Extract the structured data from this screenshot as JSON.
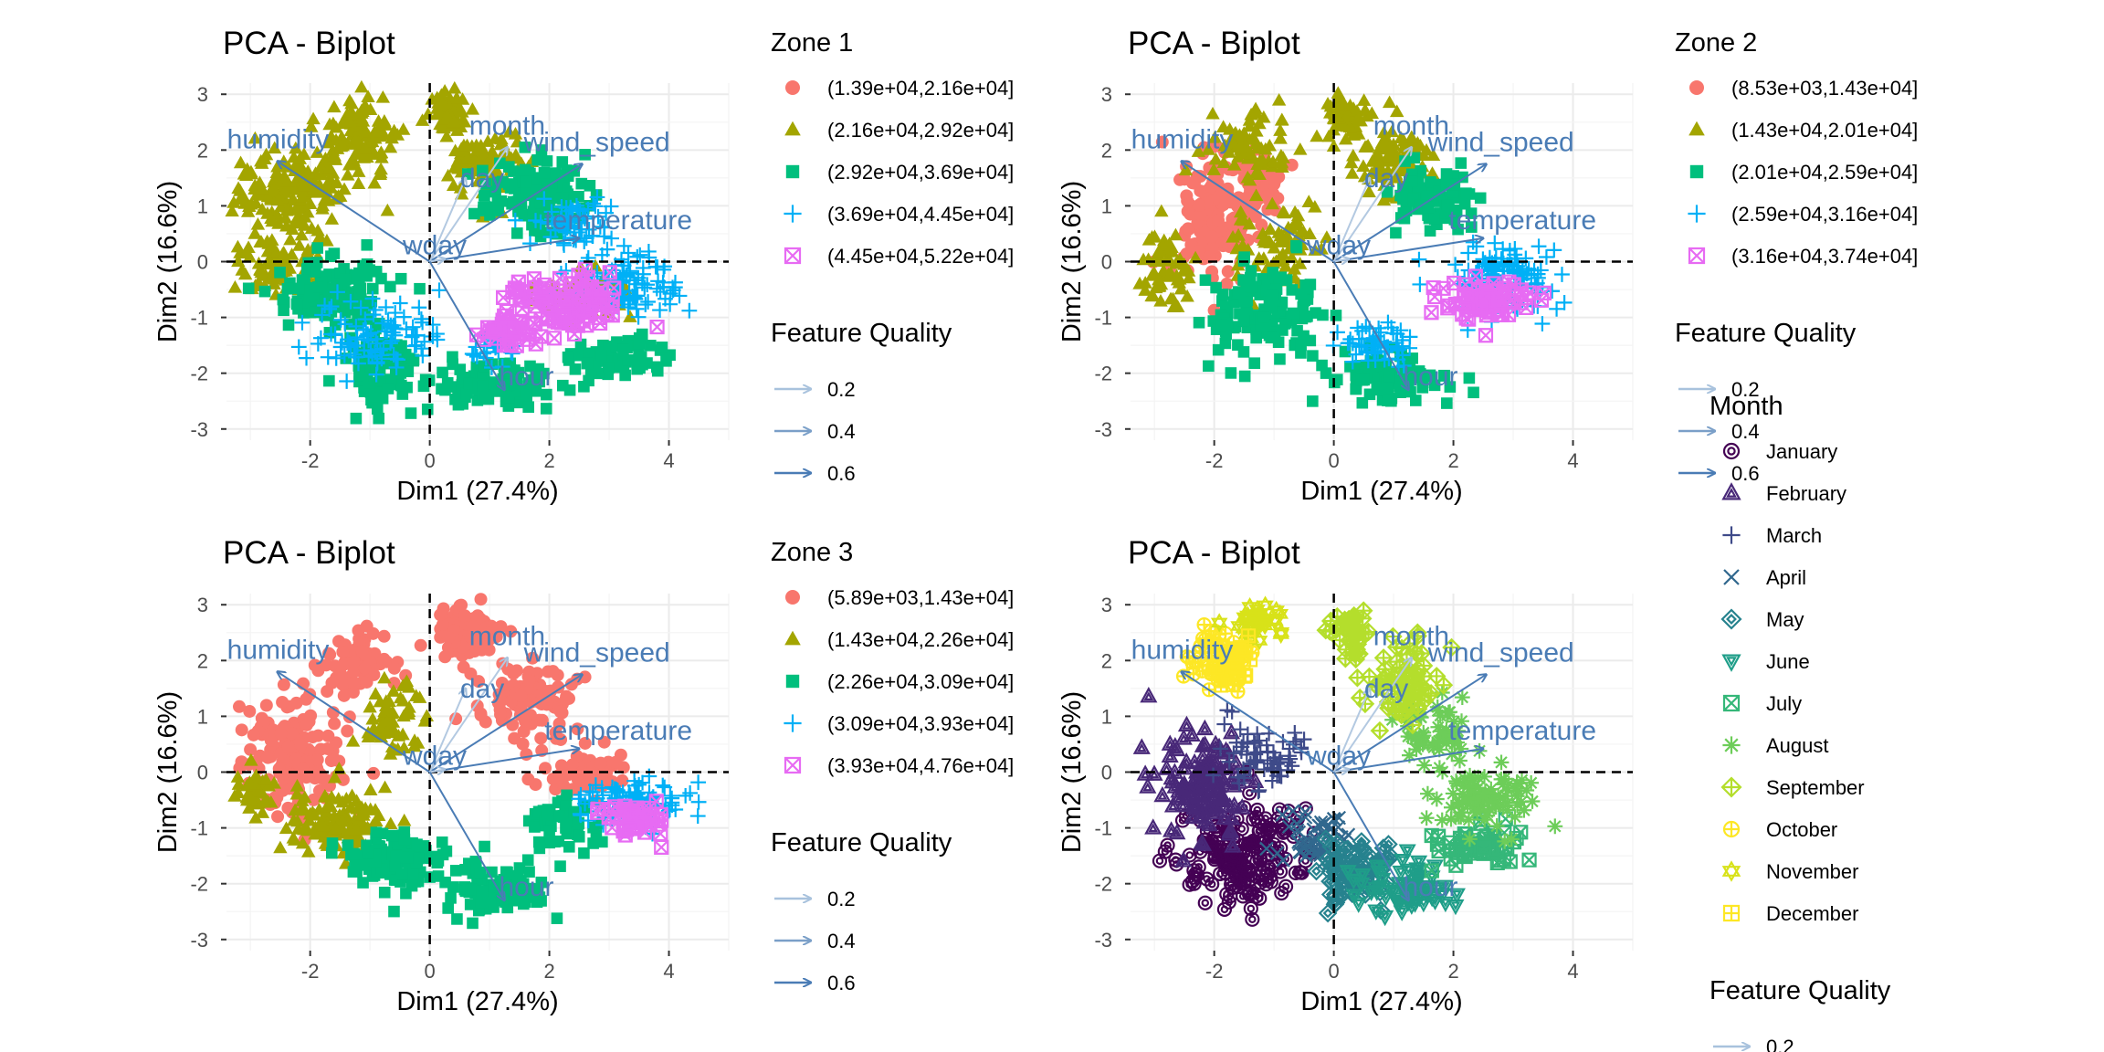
{
  "chart_data": [
    {
      "type": "scatter",
      "title": "PCA - Biplot",
      "xlabel": "Dim1 (27.4%)",
      "ylabel": "Dim2 (16.6%)",
      "xlim": [
        -3.4,
        5.0
      ],
      "ylim": [
        -3.2,
        3.2
      ],
      "x_ticks": [
        "-2",
        "0",
        "2",
        "4"
      ],
      "y_ticks": [
        "3",
        "2",
        "1",
        "0",
        "-1",
        "-2",
        "-3"
      ],
      "grid": true,
      "legend_title": "Zone 1",
      "legend": [
        {
          "label": "(1.39e+04,2.16e+04]",
          "color": "#F8766D",
          "shape": "circle"
        },
        {
          "label": "(2.16e+04,2.92e+04]",
          "color": "#A3A500",
          "shape": "triangle"
        },
        {
          "label": "(2.92e+04,3.69e+04]",
          "color": "#00BF7D",
          "shape": "square"
        },
        {
          "label": "(3.69e+04,4.45e+04]",
          "color": "#00B0F6",
          "shape": "plus"
        },
        {
          "label": "(4.45e+04,5.22e+04]",
          "color": "#E76BF3",
          "shape": "boxx"
        }
      ],
      "quality_title": "Feature Quality",
      "quality": [
        "0.2",
        "0.4",
        "0.6"
      ],
      "variables": [
        {
          "name": "humidity",
          "x": -2.55,
          "y": 1.8
        },
        {
          "name": "month",
          "x": 1.3,
          "y": 2.05
        },
        {
          "name": "wind_speed",
          "x": 2.55,
          "y": 1.75
        },
        {
          "name": "day",
          "x": 0.6,
          "y": 1.5
        },
        {
          "name": "temperature",
          "x": 2.5,
          "y": 0.42
        },
        {
          "name": "wday",
          "x": 0.25,
          "y": 0.05
        },
        {
          "name": "hour",
          "x": 1.25,
          "y": -2.3
        }
      ],
      "clusters": [
        {
          "series": 1,
          "cx": -2.3,
          "cy": 1.3,
          "rx": 0.9,
          "ry": 0.7,
          "n": 170
        },
        {
          "series": 1,
          "cx": -1.2,
          "cy": 2.2,
          "rx": 0.6,
          "ry": 0.6,
          "n": 100
        },
        {
          "series": 1,
          "cx": 0.3,
          "cy": 2.6,
          "rx": 0.3,
          "ry": 0.4,
          "n": 70
        },
        {
          "series": 1,
          "cx": 1.0,
          "cy": 1.7,
          "rx": 0.6,
          "ry": 0.6,
          "n": 90
        },
        {
          "series": 1,
          "cx": -2.5,
          "cy": 0.0,
          "rx": 0.6,
          "ry": 0.6,
          "n": 90
        },
        {
          "series": 1,
          "cx": 2.6,
          "cy": -0.6,
          "rx": 0.7,
          "ry": 0.4,
          "n": 60
        },
        {
          "series": 2,
          "cx": -1.7,
          "cy": -0.6,
          "rx": 0.8,
          "ry": 0.6,
          "n": 130
        },
        {
          "series": 2,
          "cx": -0.8,
          "cy": -1.9,
          "rx": 0.6,
          "ry": 0.6,
          "n": 90
        },
        {
          "series": 2,
          "cx": 1.0,
          "cy": -2.2,
          "rx": 1.1,
          "ry": 0.35,
          "n": 110
        },
        {
          "series": 2,
          "cx": 1.7,
          "cy": 1.2,
          "rx": 0.8,
          "ry": 0.6,
          "n": 110
        },
        {
          "series": 2,
          "cx": 3.2,
          "cy": -1.7,
          "rx": 0.7,
          "ry": 0.35,
          "n": 60
        },
        {
          "series": 3,
          "cx": -0.9,
          "cy": -1.3,
          "rx": 1.0,
          "ry": 0.6,
          "n": 100
        },
        {
          "series": 3,
          "cx": 3.3,
          "cy": -0.4,
          "rx": 0.8,
          "ry": 0.5,
          "n": 110
        },
        {
          "series": 3,
          "cx": 2.4,
          "cy": 0.7,
          "rx": 0.6,
          "ry": 0.4,
          "n": 70
        },
        {
          "series": 3,
          "cx": 1.1,
          "cy": -1.5,
          "rx": 0.4,
          "ry": 0.3,
          "n": 30
        },
        {
          "series": 4,
          "cx": 2.3,
          "cy": -0.8,
          "rx": 0.9,
          "ry": 0.5,
          "n": 110
        },
        {
          "series": 4,
          "cx": 1.3,
          "cy": -1.3,
          "rx": 0.4,
          "ry": 0.3,
          "n": 35
        }
      ]
    },
    {
      "type": "scatter",
      "title": "PCA - Biplot",
      "xlabel": "Dim1 (27.4%)",
      "ylabel": "Dim2 (16.6%)",
      "xlim": [
        -3.4,
        5.0
      ],
      "ylim": [
        -3.2,
        3.2
      ],
      "x_ticks": [
        "-2",
        "0",
        "2",
        "4"
      ],
      "y_ticks": [
        "3",
        "2",
        "1",
        "0",
        "-1",
        "-2",
        "-3"
      ],
      "grid": true,
      "legend_title": "Zone 2",
      "legend": [
        {
          "label": "(8.53e+03,1.43e+04]",
          "color": "#F8766D",
          "shape": "circle"
        },
        {
          "label": "(1.43e+04,2.01e+04]",
          "color": "#A3A500",
          "shape": "triangle"
        },
        {
          "label": "(2.01e+04,2.59e+04]",
          "color": "#00BF7D",
          "shape": "square"
        },
        {
          "label": "(2.59e+04,3.16e+04]",
          "color": "#00B0F6",
          "shape": "plus"
        },
        {
          "label": "(3.16e+04,3.74e+04]",
          "color": "#E76BF3",
          "shape": "boxx"
        }
      ],
      "quality_title": "Feature Quality",
      "quality": [
        "0.2",
        "0.4",
        "0.6"
      ],
      "variables": [
        {
          "name": "humidity",
          "x": -2.55,
          "y": 1.8
        },
        {
          "name": "month",
          "x": 1.3,
          "y": 2.05
        },
        {
          "name": "wind_speed",
          "x": 2.55,
          "y": 1.75
        },
        {
          "name": "day",
          "x": 0.6,
          "y": 1.5
        },
        {
          "name": "temperature",
          "x": 2.5,
          "y": 0.42
        },
        {
          "name": "wday",
          "x": 0.25,
          "y": 0.05
        },
        {
          "name": "hour",
          "x": 1.25,
          "y": -2.3
        }
      ],
      "clusters": [
        {
          "series": 0,
          "cx": -2.0,
          "cy": 0.8,
          "rx": 0.6,
          "ry": 1.0,
          "n": 150
        },
        {
          "series": 0,
          "cx": -1.3,
          "cy": 1.4,
          "rx": 0.4,
          "ry": 0.5,
          "n": 50
        },
        {
          "series": 1,
          "cx": -1.4,
          "cy": 2.1,
          "rx": 0.6,
          "ry": 0.6,
          "n": 80
        },
        {
          "series": 1,
          "cx": -2.8,
          "cy": -0.1,
          "rx": 0.4,
          "ry": 0.6,
          "n": 60
        },
        {
          "series": 1,
          "cx": 0.2,
          "cy": 2.6,
          "rx": 0.3,
          "ry": 0.4,
          "n": 60
        },
        {
          "series": 1,
          "cx": 1.0,
          "cy": 1.8,
          "rx": 0.6,
          "ry": 0.5,
          "n": 90
        },
        {
          "series": 1,
          "cx": -1.0,
          "cy": 0.3,
          "rx": 0.6,
          "ry": 0.6,
          "n": 70
        },
        {
          "series": 2,
          "cx": -1.2,
          "cy": -0.9,
          "rx": 0.9,
          "ry": 0.7,
          "n": 140
        },
        {
          "series": 2,
          "cx": 0.8,
          "cy": -2.1,
          "rx": 1.0,
          "ry": 0.4,
          "n": 100
        },
        {
          "series": 2,
          "cx": 1.7,
          "cy": 1.1,
          "rx": 0.7,
          "ry": 0.5,
          "n": 90
        },
        {
          "series": 3,
          "cx": 2.8,
          "cy": -0.3,
          "rx": 0.9,
          "ry": 0.5,
          "n": 130
        },
        {
          "series": 3,
          "cx": 0.8,
          "cy": -1.5,
          "rx": 0.6,
          "ry": 0.35,
          "n": 60
        },
        {
          "series": 4,
          "cx": 2.6,
          "cy": -0.7,
          "rx": 0.7,
          "ry": 0.35,
          "n": 70
        }
      ]
    },
    {
      "type": "scatter",
      "title": "PCA - Biplot",
      "xlabel": "Dim1 (27.4%)",
      "ylabel": "Dim2 (16.6%)",
      "xlim": [
        -3.4,
        5.0
      ],
      "ylim": [
        -3.2,
        3.2
      ],
      "x_ticks": [
        "-2",
        "0",
        "2",
        "4"
      ],
      "y_ticks": [
        "3",
        "2",
        "1",
        "0",
        "-1",
        "-2",
        "-3"
      ],
      "grid": true,
      "legend_title": "Zone 3",
      "legend": [
        {
          "label": "(5.89e+03,1.43e+04]",
          "color": "#F8766D",
          "shape": "circle"
        },
        {
          "label": "(1.43e+04,2.26e+04]",
          "color": "#A3A500",
          "shape": "triangle"
        },
        {
          "label": "(2.26e+04,3.09e+04]",
          "color": "#00BF7D",
          "shape": "square"
        },
        {
          "label": "(3.09e+04,3.93e+04]",
          "color": "#00B0F6",
          "shape": "plus"
        },
        {
          "label": "(3.93e+04,4.76e+04]",
          "color": "#E76BF3",
          "shape": "boxx"
        }
      ],
      "quality_title": "Feature Quality",
      "quality": [
        "0.2",
        "0.4",
        "0.6"
      ],
      "variables": [
        {
          "name": "humidity",
          "x": -2.55,
          "y": 1.8
        },
        {
          "name": "month",
          "x": 1.3,
          "y": 2.05
        },
        {
          "name": "wind_speed",
          "x": 2.55,
          "y": 1.75
        },
        {
          "name": "day",
          "x": 0.6,
          "y": 1.5
        },
        {
          "name": "temperature",
          "x": 2.5,
          "y": 0.42
        },
        {
          "name": "wday",
          "x": 0.25,
          "y": 0.05
        },
        {
          "name": "hour",
          "x": 1.25,
          "y": -2.3
        }
      ],
      "clusters": [
        {
          "series": 0,
          "cx": -2.3,
          "cy": 0.2,
          "rx": 0.8,
          "ry": 1.0,
          "n": 170
        },
        {
          "series": 0,
          "cx": -1.2,
          "cy": 1.9,
          "rx": 0.6,
          "ry": 0.5,
          "n": 70
        },
        {
          "series": 0,
          "cx": 0.6,
          "cy": 2.5,
          "rx": 0.5,
          "ry": 0.4,
          "n": 90
        },
        {
          "series": 0,
          "cx": 1.6,
          "cy": 1.3,
          "rx": 0.7,
          "ry": 0.6,
          "n": 100
        },
        {
          "series": 0,
          "cx": 2.6,
          "cy": 0.0,
          "rx": 0.6,
          "ry": 0.4,
          "n": 60
        },
        {
          "series": 1,
          "cx": -1.5,
          "cy": -0.9,
          "rx": 0.8,
          "ry": 0.6,
          "n": 120
        },
        {
          "series": 1,
          "cx": -0.6,
          "cy": 0.9,
          "rx": 0.5,
          "ry": 0.6,
          "n": 60
        },
        {
          "series": 1,
          "cx": -2.9,
          "cy": -0.4,
          "rx": 0.3,
          "ry": 0.4,
          "n": 40
        },
        {
          "series": 2,
          "cx": -0.5,
          "cy": -1.6,
          "rx": 0.9,
          "ry": 0.5,
          "n": 110
        },
        {
          "series": 2,
          "cx": 1.0,
          "cy": -2.1,
          "rx": 0.9,
          "ry": 0.4,
          "n": 90
        },
        {
          "series": 2,
          "cx": 2.2,
          "cy": -0.9,
          "rx": 0.6,
          "ry": 0.4,
          "n": 60
        },
        {
          "series": 3,
          "cx": 3.4,
          "cy": -0.6,
          "rx": 0.8,
          "ry": 0.4,
          "n": 110
        },
        {
          "series": 4,
          "cx": 3.4,
          "cy": -0.8,
          "rx": 0.5,
          "ry": 0.3,
          "n": 50
        }
      ]
    },
    {
      "type": "scatter",
      "title": "PCA - Biplot",
      "xlabel": "Dim1 (27.4%)",
      "ylabel": "Dim2 (16.6%)",
      "xlim": [
        -3.4,
        5.0
      ],
      "ylim": [
        -3.2,
        3.2
      ],
      "x_ticks": [
        "-2",
        "0",
        "2",
        "4"
      ],
      "y_ticks": [
        "3",
        "2",
        "1",
        "0",
        "-1",
        "-2",
        "-3"
      ],
      "grid": true,
      "legend_title": "Month",
      "legend": [
        {
          "label": "January",
          "color": "#440154",
          "shape": "circle-dot"
        },
        {
          "label": "February",
          "color": "#482878",
          "shape": "triangle-up2"
        },
        {
          "label": "March",
          "color": "#3E4A89",
          "shape": "plus"
        },
        {
          "label": "April",
          "color": "#31688E",
          "shape": "cross"
        },
        {
          "label": "May",
          "color": "#26828E",
          "shape": "diamond2"
        },
        {
          "label": "June",
          "color": "#1F9E89",
          "shape": "triangle-down2"
        },
        {
          "label": "July",
          "color": "#35B779",
          "shape": "boxx"
        },
        {
          "label": "August",
          "color": "#6DCD59",
          "shape": "asterisk"
        },
        {
          "label": "September",
          "color": "#B4DE2C",
          "shape": "diamond-plus"
        },
        {
          "label": "October",
          "color": "#FDE725",
          "shape": "circle-plus"
        },
        {
          "label": "November",
          "color": "#D8E219",
          "shape": "star6"
        },
        {
          "label": "December",
          "color": "#FDE725",
          "shape": "square-plus"
        }
      ],
      "quality_title": "Feature Quality",
      "quality": [
        "0.2"
      ],
      "variables": [
        {
          "name": "humidity",
          "x": -2.55,
          "y": 1.8
        },
        {
          "name": "month",
          "x": 1.3,
          "y": 2.05
        },
        {
          "name": "wind_speed",
          "x": 2.55,
          "y": 1.75
        },
        {
          "name": "day",
          "x": 0.6,
          "y": 1.5
        },
        {
          "name": "temperature",
          "x": 2.5,
          "y": 0.42
        },
        {
          "name": "wday",
          "x": 0.25,
          "y": 0.05
        },
        {
          "name": "hour",
          "x": 1.25,
          "y": -2.3
        }
      ],
      "clusters": [
        {
          "series": 0,
          "cx": -1.5,
          "cy": -1.4,
          "rx": 1.0,
          "ry": 0.8,
          "n": 170
        },
        {
          "series": 1,
          "cx": -2.2,
          "cy": -0.2,
          "rx": 0.7,
          "ry": 0.8,
          "n": 130
        },
        {
          "series": 2,
          "cx": -1.2,
          "cy": 0.3,
          "rx": 0.6,
          "ry": 0.6,
          "n": 70
        },
        {
          "series": 3,
          "cx": -0.3,
          "cy": -1.2,
          "rx": 0.5,
          "ry": 0.5,
          "n": 60
        },
        {
          "series": 4,
          "cx": 0.4,
          "cy": -1.8,
          "rx": 0.6,
          "ry": 0.5,
          "n": 80
        },
        {
          "series": 5,
          "cx": 1.2,
          "cy": -2.1,
          "rx": 0.8,
          "ry": 0.4,
          "n": 70
        },
        {
          "series": 6,
          "cx": 2.4,
          "cy": -1.3,
          "rx": 0.7,
          "ry": 0.4,
          "n": 60
        },
        {
          "series": 7,
          "cx": 2.6,
          "cy": -0.5,
          "rx": 0.8,
          "ry": 0.5,
          "n": 90
        },
        {
          "series": 7,
          "cx": 1.6,
          "cy": 0.7,
          "rx": 0.6,
          "ry": 0.5,
          "n": 60
        },
        {
          "series": 8,
          "cx": 1.2,
          "cy": 1.6,
          "rx": 0.6,
          "ry": 0.6,
          "n": 80
        },
        {
          "series": 8,
          "cx": 0.3,
          "cy": 2.5,
          "rx": 0.3,
          "ry": 0.4,
          "n": 40
        },
        {
          "series": 9,
          "cx": -1.9,
          "cy": 2.1,
          "rx": 0.5,
          "ry": 0.5,
          "n": 60
        },
        {
          "series": 10,
          "cx": -1.2,
          "cy": 2.7,
          "rx": 0.4,
          "ry": 0.3,
          "n": 35
        },
        {
          "series": 11,
          "cx": -1.7,
          "cy": 2.0,
          "rx": 0.35,
          "ry": 0.4,
          "n": 40
        }
      ]
    }
  ]
}
